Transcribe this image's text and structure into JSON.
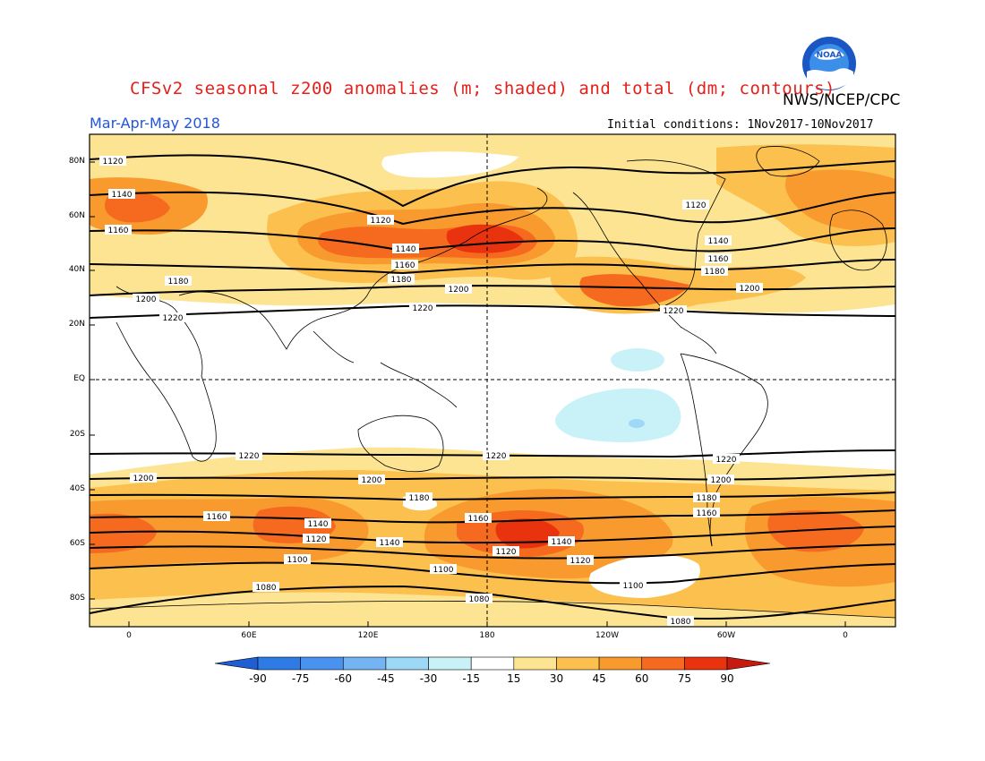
{
  "title": "CFSv2 seasonal z200 anomalies (m; shaded) and total (dm; contours)",
  "agency": "NWS/NCEP/CPC",
  "season": "Mar-Apr-May 2018",
  "initial_conditions": "Initial conditions: 1Nov2017-10Nov2017",
  "logo": {
    "icon": "noaa-logo-icon",
    "text": "NOAA"
  },
  "lat_labels": [
    "80N",
    "60N",
    "40N",
    "20N",
    "EQ",
    "20S",
    "40S",
    "60S",
    "80S"
  ],
  "lon_labels": [
    "0",
    "60E",
    "120E",
    "180",
    "120W",
    "60W",
    "0"
  ],
  "colorbar": {
    "labels": [
      "-90",
      "-75",
      "-60",
      "-45",
      "-30",
      "-15",
      "15",
      "30",
      "45",
      "60",
      "75",
      "90"
    ],
    "colors": [
      "#1f5fd3",
      "#2f7be6",
      "#4a92f0",
      "#74b4f3",
      "#9ed8f7",
      "#c8f2f8",
      "#ffffff",
      "#fce492",
      "#fcc04e",
      "#f99a2e",
      "#f56a1e",
      "#e9320e",
      "#c41b0e"
    ]
  },
  "contour_labels": [
    "1120",
    "1140",
    "1160",
    "1180",
    "1200",
    "1220",
    "1120",
    "1140",
    "1160",
    "1180",
    "1200",
    "1220",
    "1120",
    "1140",
    "1160",
    "1180",
    "1200",
    "1220",
    "1220",
    "1200",
    "1180",
    "1160",
    "1140",
    "1120",
    "1100",
    "1080",
    "1200",
    "1160",
    "1140",
    "1120",
    "1100",
    "1080",
    "1220",
    "1200",
    "1180",
    "1160",
    "1140",
    "1120",
    "1100",
    "1080"
  ]
}
